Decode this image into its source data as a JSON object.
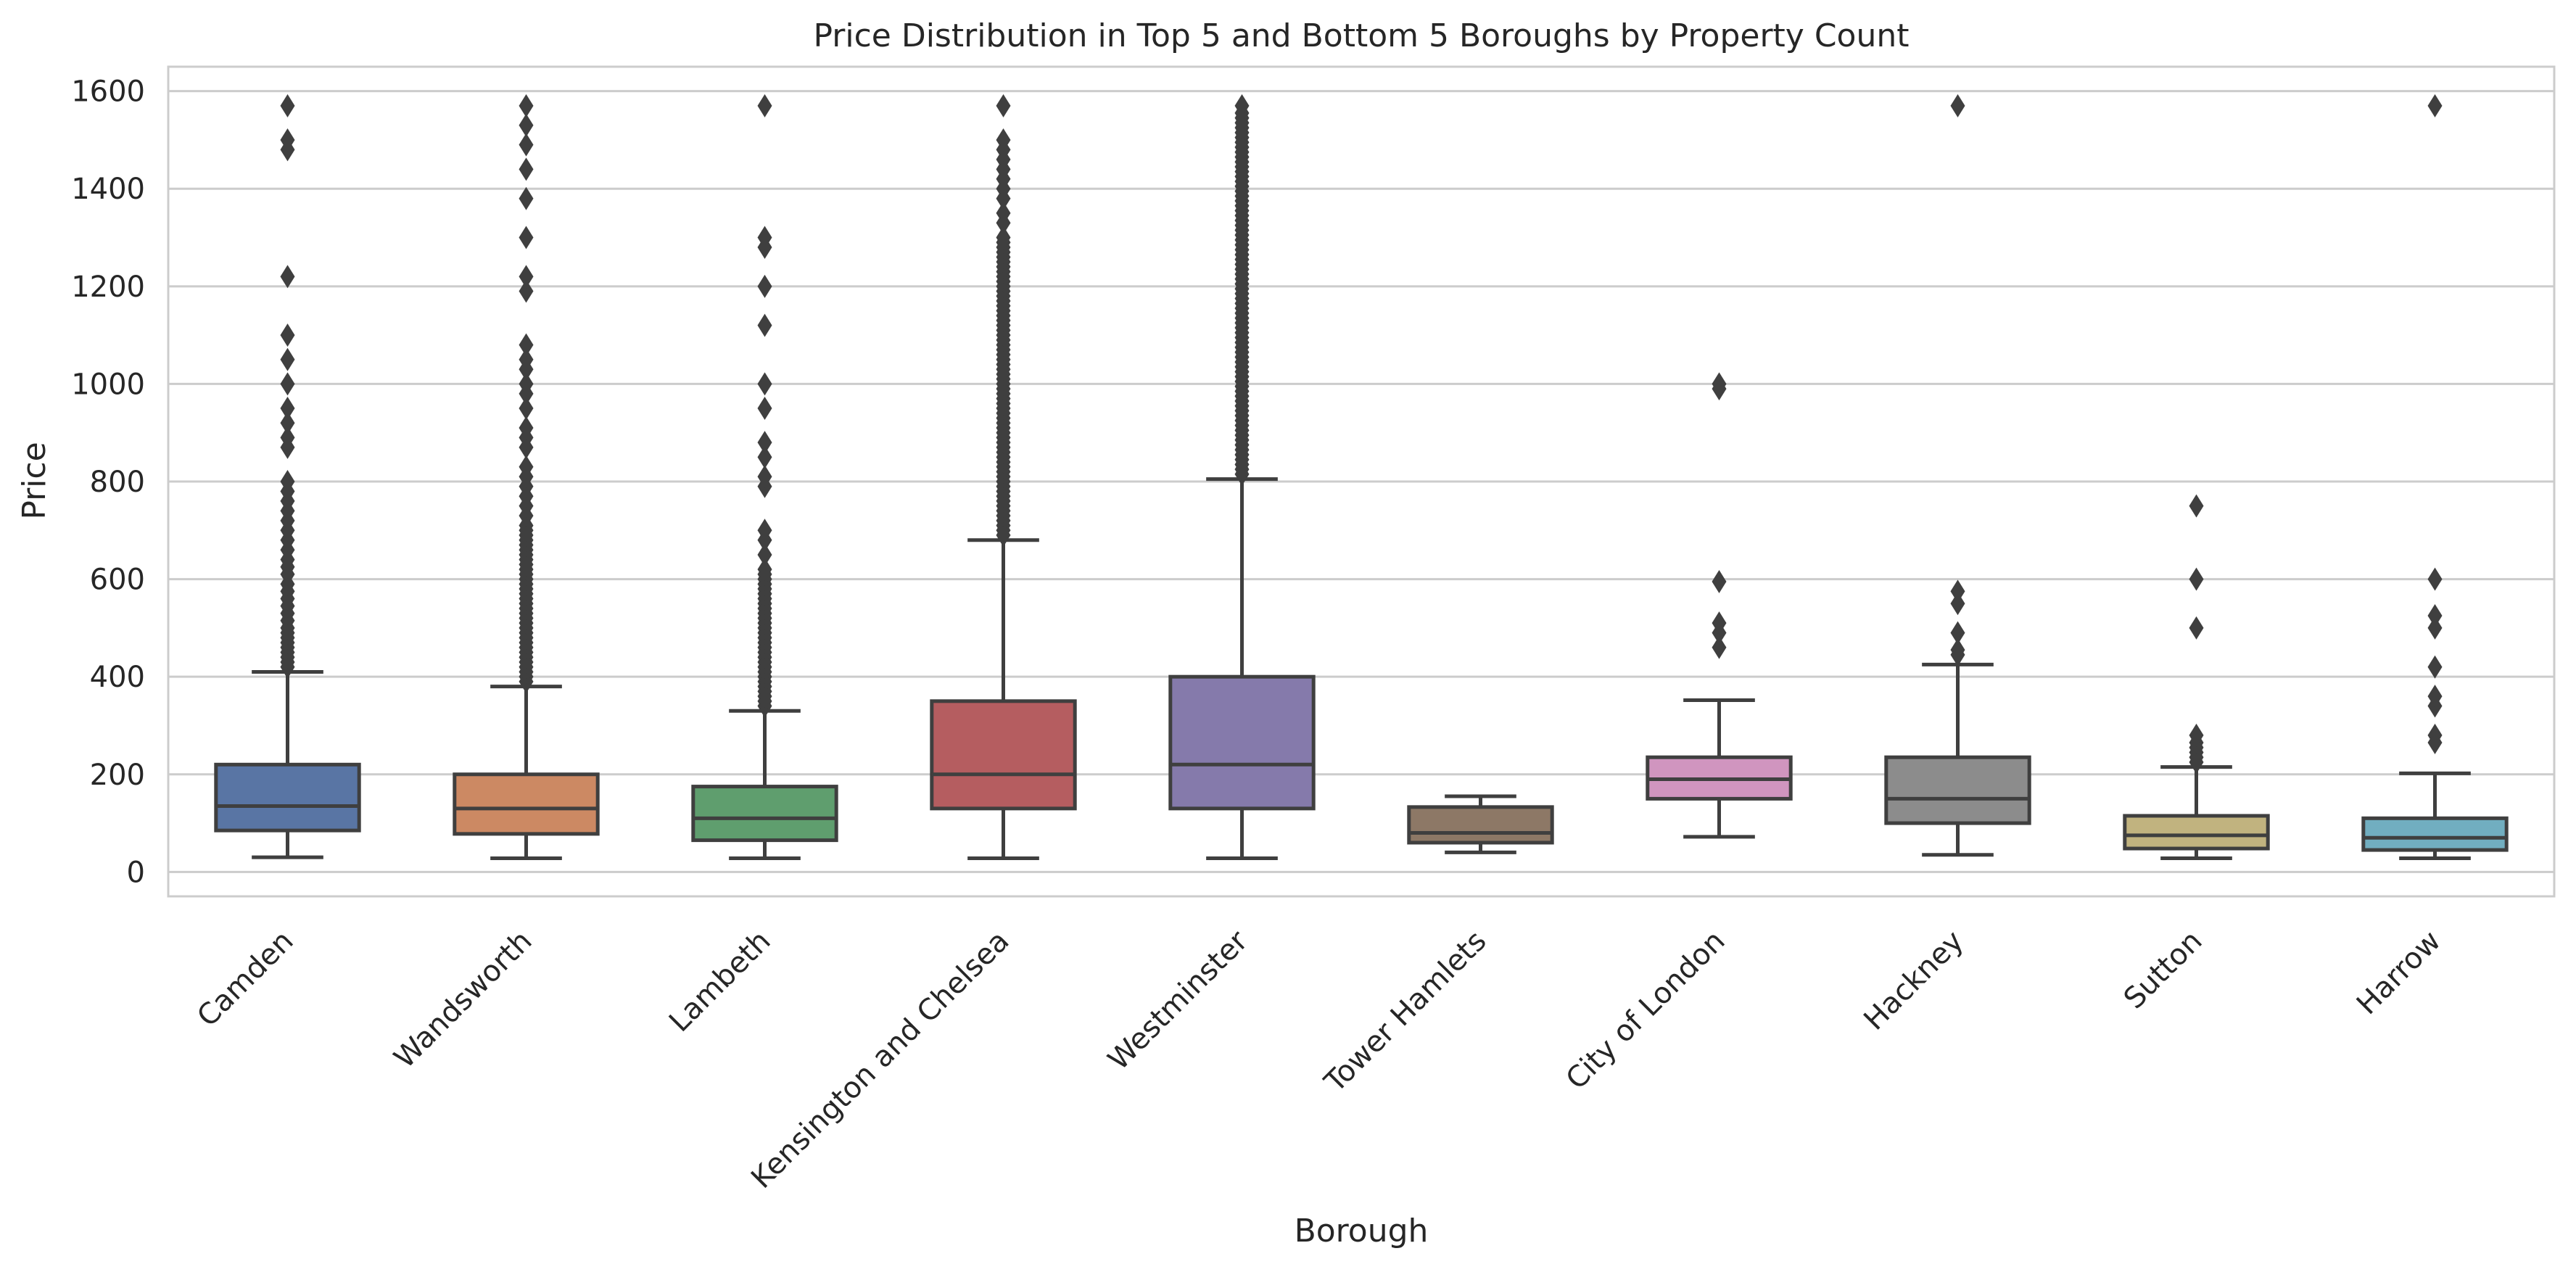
{
  "chart_data": {
    "type": "box",
    "title": "Price Distribution in Top 5 and Bottom 5 Boroughs by Property Count",
    "xlabel": "Borough",
    "ylabel": "Price",
    "ylim": [
      -50,
      1650
    ],
    "yticks": [
      0,
      200,
      400,
      600,
      800,
      1000,
      1200,
      1400,
      1600
    ],
    "grid": "horizontal",
    "categories": [
      "Camden",
      "Wandsworth",
      "Lambeth",
      "Kensington and Chelsea",
      "Westminster",
      "Tower Hamlets",
      "City of London",
      "Hackney",
      "Sutton",
      "Harrow"
    ],
    "colors": [
      "#5975a4",
      "#cc8963",
      "#5f9e6e",
      "#b55d60",
      "#857aab",
      "#8d7866",
      "#d095bf",
      "#8c8c8c",
      "#c1b37f",
      "#71aec0"
    ],
    "line_color": "#3f3f3f",
    "boxes": [
      {
        "label": "Camden",
        "whislo": 30,
        "q1": 85,
        "median": 135,
        "q3": 220,
        "whishi": 410,
        "fliers": [
          420,
          430,
          440,
          450,
          460,
          470,
          480,
          490,
          500,
          515,
          530,
          545,
          560,
          575,
          590,
          610,
          625,
          640,
          660,
          680,
          700,
          720,
          740,
          760,
          780,
          800,
          870,
          890,
          920,
          950,
          1000,
          1050,
          1100,
          1220,
          1480,
          1500,
          1570
        ]
      },
      {
        "label": "Wandsworth",
        "whislo": 28,
        "q1": 78,
        "median": 130,
        "q3": 200,
        "whishi": 380,
        "fliers": [
          390,
          400,
          410,
          420,
          430,
          440,
          450,
          460,
          470,
          480,
          490,
          500,
          510,
          520,
          530,
          540,
          550,
          560,
          570,
          580,
          590,
          600,
          610,
          620,
          630,
          640,
          650,
          660,
          670,
          680,
          690,
          700,
          710,
          730,
          750,
          770,
          790,
          810,
          830,
          870,
          890,
          910,
          950,
          980,
          1000,
          1030,
          1050,
          1080,
          1190,
          1220,
          1300,
          1380,
          1440,
          1490,
          1530,
          1570
        ]
      },
      {
        "label": "Lambeth",
        "whislo": 28,
        "q1": 65,
        "median": 110,
        "q3": 175,
        "whishi": 330,
        "fliers": [
          340,
          350,
          360,
          370,
          380,
          390,
          400,
          410,
          420,
          430,
          440,
          450,
          460,
          470,
          480,
          490,
          500,
          510,
          520,
          530,
          540,
          550,
          560,
          570,
          580,
          590,
          600,
          610,
          620,
          650,
          680,
          700,
          790,
          810,
          850,
          880,
          950,
          1000,
          1120,
          1200,
          1280,
          1300,
          1570
        ]
      },
      {
        "label": "Kensington and Chelsea",
        "whislo": 28,
        "q1": 130,
        "median": 200,
        "q3": 350,
        "whishi": 680,
        "fliers": [
          690,
          700,
          710,
          720,
          730,
          740,
          750,
          760,
          770,
          780,
          790,
          800,
          810,
          820,
          830,
          840,
          850,
          860,
          870,
          880,
          890,
          900,
          910,
          920,
          930,
          940,
          950,
          960,
          970,
          980,
          990,
          1000,
          1010,
          1020,
          1030,
          1040,
          1050,
          1060,
          1070,
          1080,
          1090,
          1100,
          1110,
          1120,
          1130,
          1140,
          1150,
          1160,
          1170,
          1180,
          1190,
          1200,
          1210,
          1220,
          1230,
          1240,
          1250,
          1260,
          1270,
          1280,
          1290,
          1300,
          1330,
          1350,
          1380,
          1400,
          1420,
          1440,
          1460,
          1480,
          1500,
          1570
        ]
      },
      {
        "label": "Westminster",
        "whislo": 28,
        "q1": 130,
        "median": 220,
        "q3": 400,
        "whishi": 805,
        "fliers": [
          815,
          825,
          835,
          845,
          855,
          865,
          875,
          885,
          895,
          905,
          915,
          925,
          935,
          945,
          955,
          965,
          975,
          985,
          995,
          1005,
          1015,
          1025,
          1035,
          1045,
          1055,
          1065,
          1075,
          1085,
          1095,
          1105,
          1115,
          1125,
          1135,
          1145,
          1155,
          1165,
          1175,
          1185,
          1195,
          1205,
          1215,
          1225,
          1235,
          1245,
          1255,
          1265,
          1275,
          1285,
          1295,
          1305,
          1315,
          1325,
          1335,
          1345,
          1355,
          1365,
          1375,
          1385,
          1395,
          1405,
          1415,
          1425,
          1435,
          1445,
          1455,
          1465,
          1475,
          1485,
          1495,
          1505,
          1515,
          1525,
          1535,
          1545,
          1555,
          1570
        ]
      },
      {
        "label": "Tower Hamlets",
        "whislo": 40,
        "q1": 60,
        "median": 80,
        "q3": 133,
        "whishi": 155,
        "fliers": []
      },
      {
        "label": "City of London",
        "whislo": 72,
        "q1": 150,
        "median": 190,
        "q3": 235,
        "whishi": 352,
        "fliers": [
          460,
          490,
          510,
          595,
          990,
          1000
        ]
      },
      {
        "label": "Hackney",
        "whislo": 35,
        "q1": 100,
        "median": 150,
        "q3": 235,
        "whishi": 425,
        "fliers": [
          445,
          455,
          490,
          550,
          575,
          1570
        ]
      },
      {
        "label": "Sutton",
        "whislo": 28,
        "q1": 48,
        "median": 75,
        "q3": 115,
        "whishi": 215,
        "fliers": [
          225,
          235,
          245,
          255,
          265,
          280,
          500,
          600,
          750
        ]
      },
      {
        "label": "Harrow",
        "whislo": 28,
        "q1": 45,
        "median": 70,
        "q3": 110,
        "whishi": 202,
        "fliers": [
          265,
          280,
          340,
          360,
          420,
          500,
          525,
          600,
          1570
        ]
      }
    ]
  }
}
